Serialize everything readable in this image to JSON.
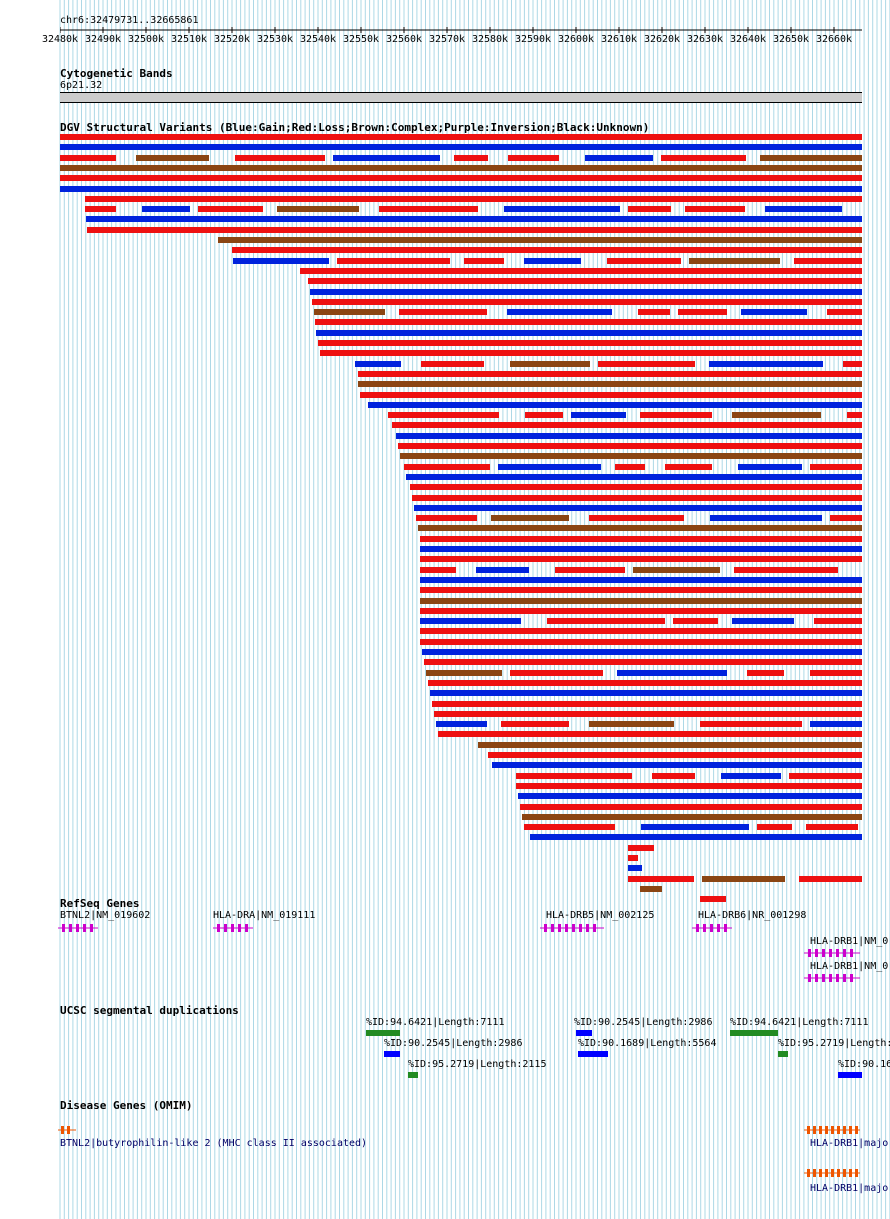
{
  "ruler": {
    "range_text": "chr6:32479731..32665861",
    "ticks": [
      "32480k",
      "32490k",
      "32500k",
      "32510k",
      "32520k",
      "32530k",
      "32540k",
      "32550k",
      "32560k",
      "32570k",
      "32580k",
      "32590k",
      "32600k",
      "32610k",
      "32620k",
      "32630k",
      "32640k",
      "32650k",
      "32660k"
    ]
  },
  "tracks": {
    "cytoband": {
      "title": "Cytogenetic Bands",
      "band": "6p21.32"
    },
    "dgv": {
      "title": "DGV Structural Variants (Blue:Gain;Red:Loss;Brown:Complex;Purple:Inversion;Black:Unknown)"
    },
    "refseq": {
      "title": "RefSeq Genes",
      "genes": [
        {
          "label": "BTNL2|NM_019602"
        },
        {
          "label": "HLA-DRA|NM_019111"
        },
        {
          "label": "HLA-DRB5|NM_002125"
        },
        {
          "label": "HLA-DRB6|NR_001298"
        },
        {
          "label": "HLA-DRB1|NM_0"
        },
        {
          "label": "HLA-DRB1|NM_0"
        }
      ]
    },
    "segdup": {
      "title": "UCSC segmental duplications",
      "items": [
        {
          "label": "%ID:94.6421|Length:7111",
          "color": "#228b22"
        },
        {
          "label": "%ID:90.2545|Length:2986",
          "color": "#0000ff"
        },
        {
          "label": "%ID:94.6421|Length:7111",
          "color": "#228b22"
        },
        {
          "label": "%ID:90.2545|Length:2986",
          "color": "#0000ff"
        },
        {
          "label": "%ID:90.1689|Length:5564",
          "color": "#0000ff"
        },
        {
          "label": "%ID:95.2719|Length:",
          "color": "#228b22"
        },
        {
          "label": "%ID:95.2719|Length:2115",
          "color": "#228b22"
        },
        {
          "label": "%ID:90.16",
          "color": "#0000ff"
        }
      ]
    },
    "omim": {
      "title": "Disease Genes (OMIM)",
      "items": [
        {
          "label": "BTNL2|butyrophilin-like 2 (MHC class II associated)"
        },
        {
          "label": "HLA-DRB1|major"
        },
        {
          "label": "HLA-DRB1|major"
        }
      ]
    }
  },
  "colors": {
    "gain": "#0022dd",
    "loss": "#ee1111",
    "complex": "#8b4513",
    "unknown": "#000000",
    "gene": "#cc00cc",
    "omim": "#ee5500",
    "grid": "#add8e6"
  }
}
